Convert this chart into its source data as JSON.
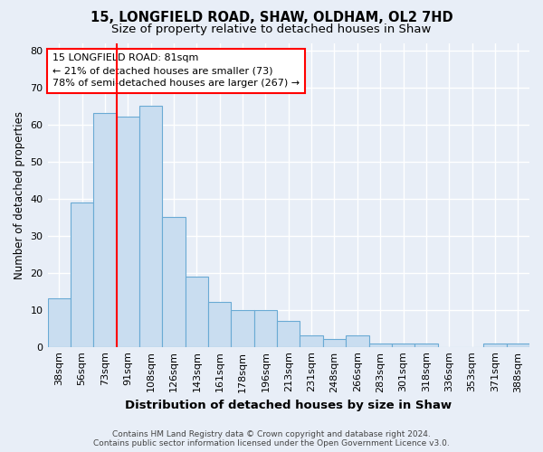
{
  "title_line1": "15, LONGFIELD ROAD, SHAW, OLDHAM, OL2 7HD",
  "title_line2": "Size of property relative to detached houses in Shaw",
  "xlabel": "Distribution of detached houses by size in Shaw",
  "ylabel": "Number of detached properties",
  "categories": [
    "38sqm",
    "56sqm",
    "73sqm",
    "91sqm",
    "108sqm",
    "126sqm",
    "143sqm",
    "161sqm",
    "178sqm",
    "196sqm",
    "213sqm",
    "231sqm",
    "248sqm",
    "266sqm",
    "283sqm",
    "301sqm",
    "318sqm",
    "336sqm",
    "353sqm",
    "371sqm",
    "388sqm"
  ],
  "values": [
    13,
    39,
    63,
    62,
    65,
    35,
    19,
    12,
    10,
    10,
    7,
    3,
    2,
    3,
    1,
    1,
    1,
    0,
    0,
    1,
    1
  ],
  "bar_color": "#c9ddf0",
  "bar_edge_color": "#6aaad4",
  "red_line_index": 3,
  "annotation_text": "15 LONGFIELD ROAD: 81sqm\n← 21% of detached houses are smaller (73)\n78% of semi-detached houses are larger (267) →",
  "annotation_box_color": "white",
  "annotation_box_edge": "red",
  "ylim": [
    0,
    82
  ],
  "yticks": [
    0,
    10,
    20,
    30,
    40,
    50,
    60,
    70,
    80
  ],
  "footer_line1": "Contains HM Land Registry data © Crown copyright and database right 2024.",
  "footer_line2": "Contains public sector information licensed under the Open Government Licence v3.0.",
  "background_color": "#e8eef7",
  "grid_color": "#ffffff",
  "title_fontsize": 10.5,
  "subtitle_fontsize": 9.5,
  "ylabel_fontsize": 8.5,
  "xlabel_fontsize": 9.5,
  "tick_fontsize": 8,
  "annotation_fontsize": 8,
  "footer_fontsize": 6.5
}
